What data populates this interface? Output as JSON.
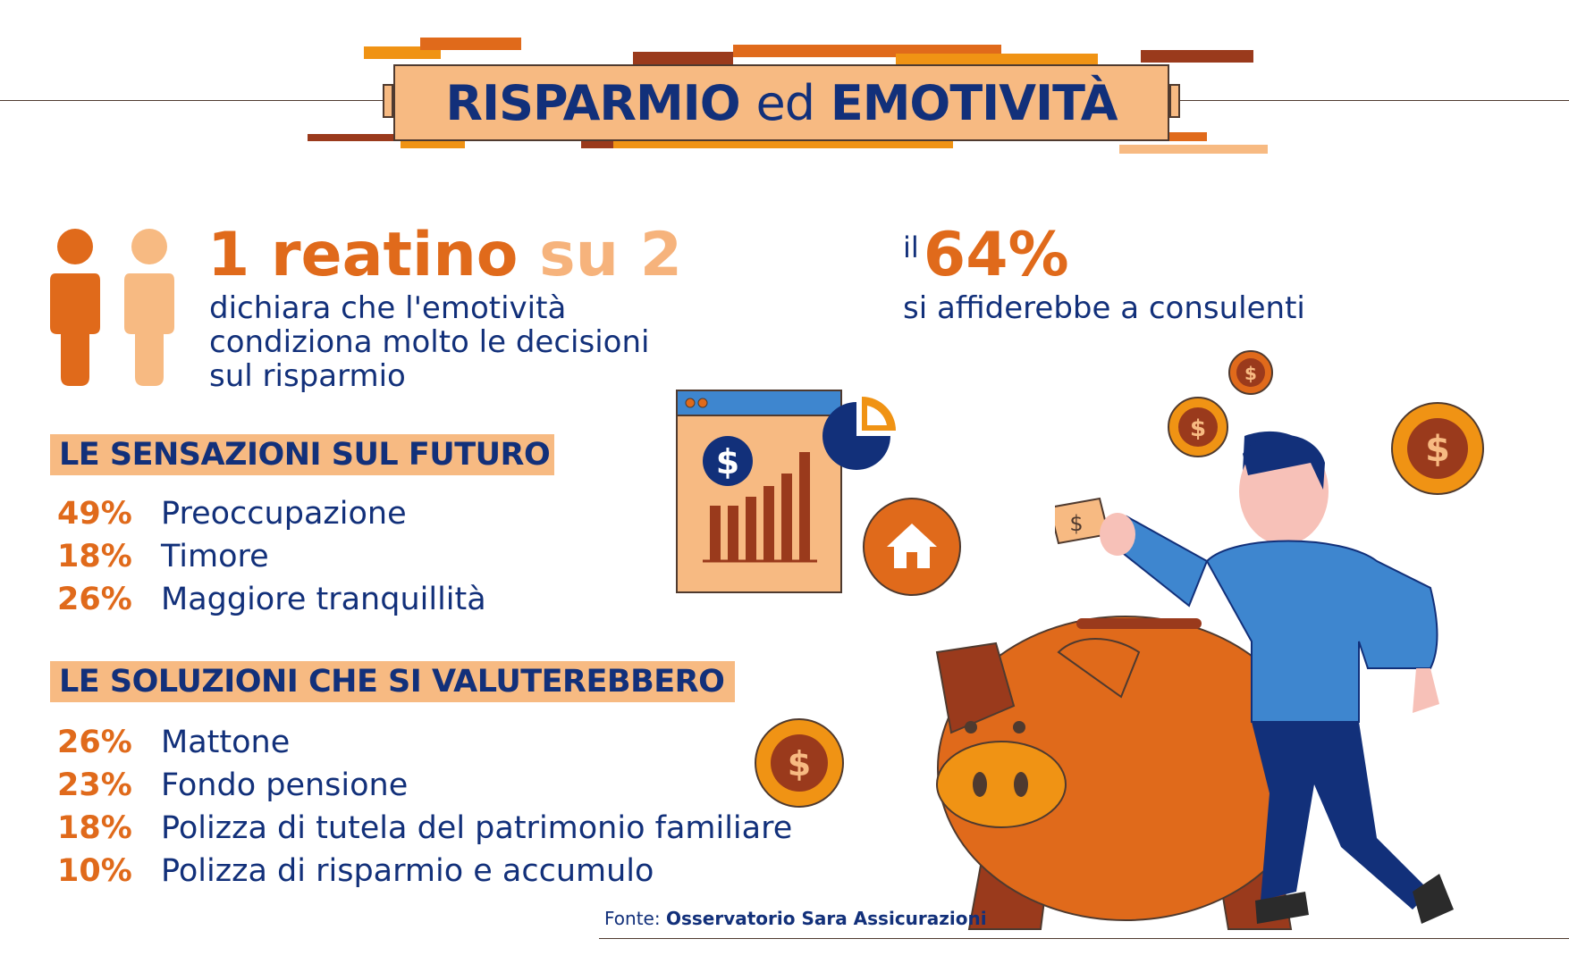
{
  "title": {
    "part1": "RISPARMIO",
    "part2": "ed",
    "part3": "EMOTIVITÀ"
  },
  "stat1": {
    "num1": "1 reatino",
    "num2": "su 2",
    "description": [
      "dichiara che l'emotività",
      "condiziona molto le decisioni",
      "sul risparmio"
    ]
  },
  "stat2": {
    "prefix": "il",
    "value": "64%",
    "description": "si affiderebbe a consulenti"
  },
  "sensazioni": {
    "heading": "LE SENSAZIONI SUL FUTURO",
    "items": [
      {
        "pct": "49%",
        "label": "Preoccupazione"
      },
      {
        "pct": "18%",
        "label": "Timore"
      },
      {
        "pct": "26%",
        "label": "Maggiore tranquillità"
      }
    ]
  },
  "soluzioni": {
    "heading": "LE SOLUZIONI CHE SI VALUTEREBBERO",
    "items": [
      {
        "pct": "26%",
        "label": "Mattone"
      },
      {
        "pct": "23%",
        "label": "Fondo pensione"
      },
      {
        "pct": "18%",
        "label": "Polizza di tutela del patrimonio familiare"
      },
      {
        "pct": "10%",
        "label": "Polizza di risparmio e accumulo"
      }
    ]
  },
  "source": {
    "label": "Fonte:",
    "name": "Osservatorio Sara Assicurazioni"
  },
  "icons": [
    "person-icon",
    "browser-chart-icon",
    "pie-chart-icon",
    "house-icon",
    "dollar-coin-icon",
    "piggy-bank-icon",
    "man-with-banknote-icon",
    "dollar-icon"
  ],
  "colors": {
    "navy": "#12307a",
    "orange": "#e06a1b",
    "peach": "#f7ba82",
    "brown": "#9a3a1c",
    "amber": "#f09314",
    "blue": "#3e86cf"
  }
}
